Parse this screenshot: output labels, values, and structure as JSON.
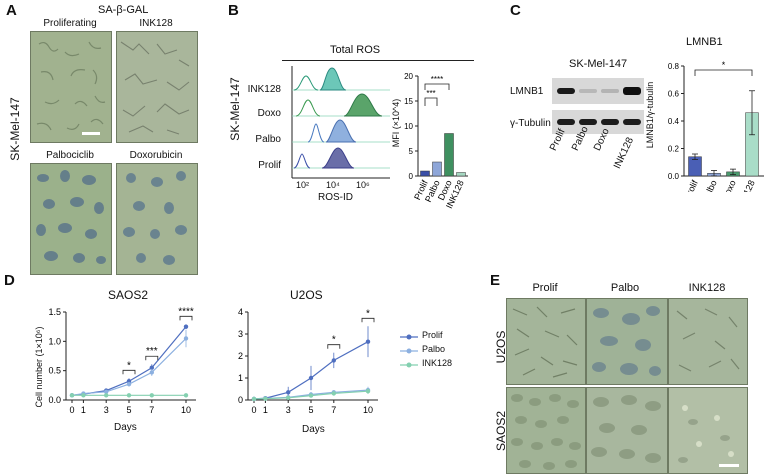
{
  "panels": {
    "A": {
      "letter": "A",
      "title": "SA-β-GAL",
      "side_label": "SK-Mel-147",
      "images": [
        {
          "label": "Proliferating",
          "bg": "#9fb08c",
          "stain": "none"
        },
        {
          "label": "INK128",
          "bg": "#a7b59a",
          "stain": "none"
        },
        {
          "label": "Palbociclib",
          "bg": "#9ab08a",
          "stain": "blue"
        },
        {
          "label": "Doxorubicin",
          "bg": "#a3b393",
          "stain": "blue"
        }
      ],
      "scale_bar_color": "#ffffff"
    },
    "B": {
      "letter": "B",
      "title": "Total ROS",
      "side_label": "SK-Mel-147",
      "rows": [
        "INK128",
        "Doxo",
        "Palbo",
        "Prolif"
      ],
      "xlabel": "ROS-ID",
      "xticks": [
        "10²",
        "10⁴",
        "10⁶"
      ],
      "bar_ylabel": "MFI (×10^4)",
      "bar_yticks": [
        "0",
        "5",
        "10",
        "15",
        "20"
      ],
      "bar_categories": [
        "Prolif",
        "Palbo",
        "Doxo",
        "INK128"
      ],
      "bar_values": [
        1,
        2.8,
        8.5,
        0.7
      ],
      "bar_colors": [
        "#3b4fa8",
        "#8ea6d8",
        "#3f9060",
        "#a6d8c2"
      ],
      "sig": [
        "***",
        "****"
      ]
    },
    "C": {
      "letter": "C",
      "blot_title": "SK-Mel-147",
      "bands": [
        "LMNB1",
        "γ-Tubulin"
      ],
      "lanes": [
        "Prolif",
        "Palbo",
        "Doxo",
        "INK128"
      ],
      "chart_title": "LMNB1",
      "ylabel": "LMNB1/γ-tubulin",
      "yticks": [
        "0.0",
        "0.2",
        "0.4",
        "0.6",
        "0.8"
      ],
      "values": [
        0.14,
        0.02,
        0.03,
        0.46
      ],
      "colors": [
        "#4a5fb5",
        "#8da4d6",
        "#4b9a6e",
        "#a9ddc8"
      ],
      "sig": "*"
    },
    "D": {
      "letter": "D",
      "legend": [
        {
          "name": "Prolif",
          "color": "#4f6fc0"
        },
        {
          "name": "Palbo",
          "color": "#8cb0e0"
        },
        {
          "name": "INK128",
          "color": "#84d0b0"
        }
      ]
    },
    "E": {
      "letter": "E",
      "columns": [
        "Prolif",
        "Palbo",
        "INK128"
      ],
      "rows": [
        "U2OS",
        "SAOS2"
      ],
      "scale_bar_color": "#ffffff"
    }
  },
  "chart_data": [
    {
      "type": "line",
      "title": "SAOS2",
      "xlabel": "Days",
      "ylabel": "Cell number (1×10⁶)",
      "x": [
        0,
        1,
        3,
        5,
        7,
        10
      ],
      "ylim": [
        0,
        1.5
      ],
      "yticks": [
        "0.0",
        "0.5",
        "1.0",
        "1.5"
      ],
      "series": [
        {
          "name": "Prolif",
          "values": [
            0.08,
            0.1,
            0.16,
            0.32,
            0.55,
            1.25
          ],
          "err": [
            0.01,
            0.02,
            0.03,
            0.05,
            0.06,
            0.04
          ]
        },
        {
          "name": "Palbo",
          "values": [
            0.08,
            0.11,
            0.14,
            0.27,
            0.47,
            1.05
          ],
          "err": [
            0.01,
            0.02,
            0.03,
            0.04,
            0.06,
            0.15
          ]
        },
        {
          "name": "INK128",
          "values": [
            0.08,
            0.08,
            0.08,
            0.08,
            0.08,
            0.08
          ],
          "err": [
            0.01,
            0.01,
            0.01,
            0.01,
            0.01,
            0.01
          ]
        }
      ],
      "sig": [
        {
          "x": 5,
          "label": "*"
        },
        {
          "x": 7,
          "label": "***"
        },
        {
          "x": 10,
          "label": "****"
        }
      ]
    },
    {
      "type": "line",
      "title": "U2OS",
      "xlabel": "Days",
      "ylabel": "",
      "x": [
        0,
        1,
        3,
        5,
        7,
        10
      ],
      "ylim": [
        0,
        4
      ],
      "yticks": [
        "0",
        "1",
        "2",
        "3",
        "4"
      ],
      "series": [
        {
          "name": "Prolif",
          "values": [
            0.05,
            0.08,
            0.35,
            1.0,
            1.8,
            2.65
          ],
          "err": [
            0.02,
            0.03,
            0.25,
            0.55,
            0.35,
            0.7
          ]
        },
        {
          "name": "Palbo",
          "values": [
            0.05,
            0.07,
            0.12,
            0.25,
            0.35,
            0.45
          ],
          "err": [
            0.02,
            0.02,
            0.05,
            0.1,
            0.1,
            0.15
          ]
        },
        {
          "name": "INK128",
          "values": [
            0.05,
            0.06,
            0.1,
            0.2,
            0.3,
            0.4
          ],
          "err": [
            0.02,
            0.02,
            0.05,
            0.08,
            0.1,
            0.12
          ]
        }
      ],
      "sig": [
        {
          "x": 7,
          "label": "*"
        },
        {
          "x": 10,
          "label": "*"
        }
      ]
    }
  ]
}
